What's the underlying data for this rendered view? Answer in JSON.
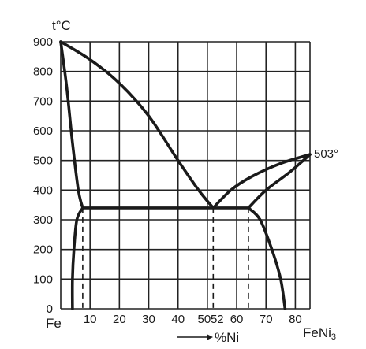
{
  "chart_data": {
    "type": "line",
    "title": "",
    "ylabel": "t°C",
    "xlabel_arrow_text": "%Ni",
    "xlim": [
      0,
      85
    ],
    "ylim": [
      0,
      900
    ],
    "grid": true,
    "x_tick_labels": [
      "10",
      "20",
      "30",
      "40",
      "50",
      "52",
      "60",
      "70",
      "80"
    ],
    "x_tick_values": [
      10,
      20,
      30,
      40,
      50,
      52,
      60,
      70,
      80
    ],
    "y_tick_labels": [
      "0",
      "100",
      "200",
      "300",
      "400",
      "500",
      "600",
      "700",
      "800",
      "900"
    ],
    "y_tick_values": [
      0,
      100,
      200,
      300,
      400,
      500,
      600,
      700,
      800,
      900
    ],
    "left_label": "Fe",
    "right_label_base": "FeNi",
    "right_label_sub": "3",
    "annotation": "503°",
    "x_grid_values": [
      0,
      10,
      20,
      30,
      40,
      50,
      60,
      70,
      80,
      85
    ],
    "y_grid_values": [
      0,
      100,
      200,
      300,
      400,
      500,
      600,
      700,
      800,
      900
    ],
    "series": [
      {
        "style": "solid",
        "points": [
          [
            0,
            900
          ],
          [
            2,
            750
          ],
          [
            4,
            560
          ],
          [
            6,
            400
          ],
          [
            7.5,
            340
          ]
        ]
      },
      {
        "style": "solid",
        "points": [
          [
            0,
            900
          ],
          [
            10,
            840
          ],
          [
            20,
            760
          ],
          [
            30,
            650
          ],
          [
            40,
            500
          ],
          [
            47,
            400
          ],
          [
            52,
            340
          ]
        ]
      },
      {
        "style": "solid",
        "points": [
          [
            52,
            340
          ],
          [
            58,
            400
          ],
          [
            65,
            445
          ],
          [
            75,
            490
          ],
          [
            85,
            520
          ]
        ]
      },
      {
        "style": "solid",
        "points": [
          [
            64,
            340
          ],
          [
            70,
            400
          ],
          [
            78,
            460
          ],
          [
            85,
            520
          ]
        ]
      },
      {
        "style": "solid",
        "points": [
          [
            7.5,
            340
          ],
          [
            64,
            340
          ]
        ]
      },
      {
        "style": "solid",
        "points": [
          [
            7.5,
            340
          ],
          [
            5.5,
            300
          ],
          [
            4.5,
            200
          ],
          [
            4,
            100
          ],
          [
            4,
            0
          ]
        ]
      },
      {
        "style": "solid",
        "points": [
          [
            64,
            340
          ],
          [
            68,
            300
          ],
          [
            72,
            200
          ],
          [
            75,
            100
          ],
          [
            76.5,
            0
          ]
        ]
      },
      {
        "style": "dashed",
        "points": [
          [
            7.5,
            340
          ],
          [
            7.5,
            0
          ]
        ]
      },
      {
        "style": "dashed",
        "points": [
          [
            52,
            340
          ],
          [
            52,
            0
          ]
        ]
      },
      {
        "style": "dashed",
        "points": [
          [
            64,
            340
          ],
          [
            64,
            0
          ]
        ]
      }
    ]
  }
}
